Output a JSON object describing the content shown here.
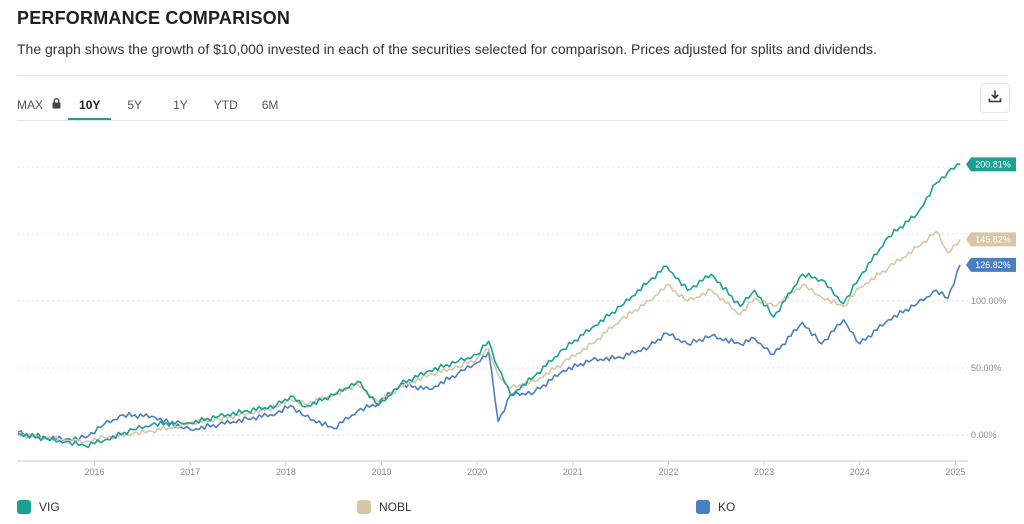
{
  "header": {
    "title": "PERFORMANCE COMPARISON",
    "subtitle": "The graph shows the growth of $10,000 invested in each of the securities selected for comparison. Prices adjusted for splits and dividends."
  },
  "tabs": [
    {
      "label": "MAX",
      "locked": true
    },
    {
      "label": "10Y",
      "active": true
    },
    {
      "label": "5Y"
    },
    {
      "label": "1Y"
    },
    {
      "label": "YTD"
    },
    {
      "label": "6M"
    }
  ],
  "icons": {
    "lock": "lock-icon",
    "download": "download-icon"
  },
  "chart_data": {
    "type": "line",
    "title": "",
    "xlabel": "",
    "ylabel": "",
    "x_range": [
      2015.2,
      2025.1
    ],
    "y_range": [
      -20,
      220
    ],
    "grid": true,
    "y_ticks": [
      {
        "value": 0,
        "label": "0.00%"
      },
      {
        "value": 50,
        "label": "50.00%"
      },
      {
        "value": 100,
        "label": "100.00%"
      }
    ],
    "x_ticks": [
      "2016",
      "2017",
      "2018",
      "2019",
      "2020",
      "2021",
      "2022",
      "2023",
      "2024",
      "2025"
    ],
    "legend_position": "bottom",
    "series": [
      {
        "name": "VIG",
        "color": "#1aa191",
        "end_label": "200.81%",
        "x": [
          2015.2,
          2015.5,
          2015.7,
          2015.9,
          2016.1,
          2016.4,
          2016.6,
          2016.9,
          2017.0,
          2017.3,
          2017.6,
          2017.9,
          2018.05,
          2018.2,
          2018.5,
          2018.75,
          2018.97,
          2019.2,
          2019.5,
          2019.8,
          2020.0,
          2020.12,
          2020.22,
          2020.35,
          2020.6,
          2020.9,
          2021.2,
          2021.5,
          2021.8,
          2021.98,
          2022.2,
          2022.45,
          2022.75,
          2022.9,
          2023.1,
          2023.4,
          2023.6,
          2023.83,
          2024.0,
          2024.3,
          2024.6,
          2024.8,
          2024.92,
          2025.05
        ],
        "values": [
          1,
          -3,
          -5,
          -8,
          -4,
          4,
          8,
          9,
          9,
          14,
          18,
          22,
          29,
          21,
          30,
          40,
          22,
          38,
          48,
          55,
          60,
          70,
          50,
          30,
          44,
          64,
          80,
          96,
          115,
          126,
          108,
          120,
          96,
          108,
          88,
          120,
          116,
          98,
          118,
          148,
          165,
          188,
          196,
          202
        ]
      },
      {
        "name": "NOBL",
        "color": "#d8c7a6",
        "end_label": "145.82%",
        "x": [
          2015.2,
          2015.5,
          2015.7,
          2015.9,
          2016.1,
          2016.4,
          2016.6,
          2016.9,
          2017.0,
          2017.3,
          2017.6,
          2017.9,
          2018.05,
          2018.2,
          2018.5,
          2018.75,
          2018.97,
          2019.2,
          2019.5,
          2019.8,
          2020.0,
          2020.12,
          2020.22,
          2020.35,
          2020.6,
          2020.9,
          2021.2,
          2021.5,
          2021.8,
          2021.98,
          2022.2,
          2022.45,
          2022.75,
          2022.9,
          2023.1,
          2023.4,
          2023.6,
          2023.83,
          2024.0,
          2024.3,
          2024.6,
          2024.8,
          2024.92,
          2025.05
        ],
        "values": [
          0,
          -2,
          -4,
          -5,
          -2,
          1,
          3,
          7,
          9,
          12,
          16,
          21,
          27,
          23,
          30,
          38,
          24,
          36,
          45,
          51,
          57,
          64,
          45,
          35,
          40,
          54,
          68,
          86,
          100,
          112,
          100,
          108,
          90,
          102,
          96,
          112,
          103,
          96,
          110,
          125,
          140,
          152,
          136,
          146
        ]
      },
      {
        "name": "KO",
        "color": "#4a7fbf",
        "end_label": "126.82%",
        "x": [
          2015.2,
          2015.5,
          2015.7,
          2015.9,
          2016.1,
          2016.3,
          2016.6,
          2016.9,
          2017.0,
          2017.3,
          2017.6,
          2017.9,
          2018.05,
          2018.2,
          2018.5,
          2018.75,
          2018.97,
          2019.2,
          2019.5,
          2019.8,
          2020.0,
          2020.12,
          2020.22,
          2020.35,
          2020.6,
          2020.9,
          2021.2,
          2021.5,
          2021.8,
          2021.98,
          2022.2,
          2022.45,
          2022.75,
          2022.9,
          2023.1,
          2023.4,
          2023.6,
          2023.83,
          2024.0,
          2024.3,
          2024.6,
          2024.8,
          2024.92,
          2025.05
        ],
        "values": [
          2,
          -2,
          -3,
          -2,
          8,
          15,
          14,
          6,
          4,
          8,
          12,
          16,
          22,
          14,
          5,
          18,
          24,
          38,
          34,
          46,
          54,
          62,
          10,
          30,
          32,
          48,
          56,
          58,
          66,
          76,
          68,
          74,
          68,
          72,
          60,
          84,
          68,
          86,
          68,
          86,
          98,
          108,
          102,
          127
        ]
      }
    ]
  }
}
